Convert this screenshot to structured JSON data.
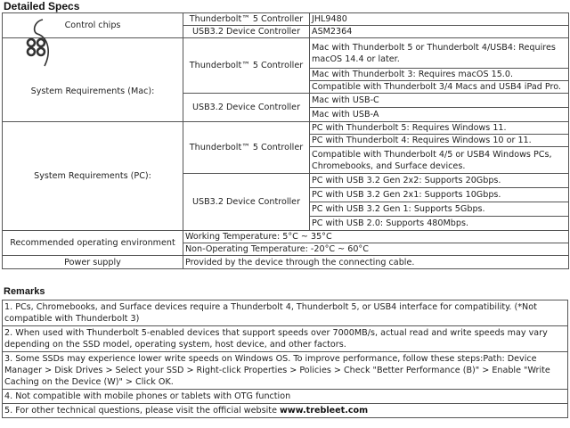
{
  "specs": {
    "title": "Detailed Specs",
    "control_chips": {
      "label": "Control chips",
      "rows": [
        {
          "component": "Thunderbolt™ 5 Controller",
          "value": "JHL9480"
        },
        {
          "component": "USB3.2 Device Controller",
          "value": "ASM2364"
        }
      ]
    },
    "mac": {
      "label": "System Requirements (Mac):",
      "icon": "apple-finder-logo-icon",
      "tb5": {
        "component": "Thunderbolt™ 5 Controller",
        "values": [
          "Mac with Thunderbolt 5 or Thunderbolt 4/USB4: Requires macOS 14.4 or later.",
          "Mac with Thunderbolt 3: Requires macOS 15.0.",
          "Compatible with Thunderbolt 3/4 Macs and USB4 iPad Pro."
        ]
      },
      "usb": {
        "component": "USB3.2 Device Controller",
        "values": [
          "Mac with USB-C",
          "Mac with USB-A"
        ]
      }
    },
    "pc": {
      "label": "System Requirements (PC):",
      "tb5": {
        "component": "Thunderbolt™ 5 Controller",
        "values": [
          "PC with Thunderbolt 5: Requires Windows 11.",
          "PC with Thunderbolt 4: Requires Windows 10 or 11.",
          "Compatible with Thunderbolt 4/5 or USB4 Windows PCs, Chromebooks, and Surface devices."
        ]
      },
      "usb": {
        "component": "USB3.2 Device Controller",
        "values": [
          "PC with USB 3.2 Gen 2x2: Supports 20Gbps.",
          "PC with USB 3.2 Gen 2x1: Supports 10Gbps.",
          "PC with USB 3.2 Gen 1: Supports 5Gbps.",
          "PC with USB 2.0: Supports 480Mbps."
        ]
      }
    },
    "environment": {
      "label": "Recommended operating environment",
      "values": [
        "Working Temperature: 5°C ~ 35°C",
        "Non-Operating Temperature: -20°C ~ 60°C"
      ]
    },
    "power": {
      "label": "Power supply",
      "value": "Provided by the device through the connecting cable."
    }
  },
  "remarks": {
    "title": "Remarks",
    "items": [
      "1. PCs, Chromebooks, and Surface devices require a Thunderbolt 4, Thunderbolt 5, or USB4 interface for compatibility. (*Not compatible with Thunderbolt 3)",
      "2. When used with Thunderbolt 5-enabled devices that support speeds over 7000MB/s, actual read and write speeds may vary depending on the SSD model, operating system, host device, and other factors.",
      "3. Some SSDs may experience lower write speeds on Windows OS. To improve performance, follow these steps:Path: Device Manager > Disk Drives > Select your SSD > Right-click Properties > Policies > Check \"Better Performance (B)\" > Enable \"Write Caching on the Device (W)\" > Click OK.",
      "4. Not compatible with mobile phones or tablets with OTG function"
    ],
    "last_prefix": "5. For other technical questions, please visit the official website ",
    "website": "www.trebleet.com"
  }
}
